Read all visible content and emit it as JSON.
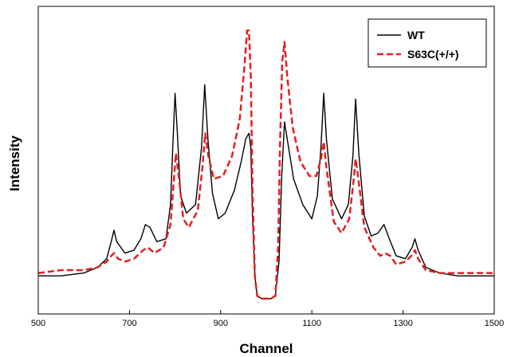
{
  "chart_data": {
    "type": "line",
    "title": "",
    "xlabel": "Channel",
    "ylabel": "Intensity",
    "xlim": [
      500,
      1500
    ],
    "ylim": [
      0,
      1
    ],
    "x_ticks": [
      500,
      700,
      900,
      1100,
      1300,
      1500
    ],
    "y_ticks_shown": false,
    "grid": false,
    "legend_position": "top-right",
    "series": [
      {
        "name": "WT",
        "color": "#000000",
        "line_style": "solid",
        "points": [
          [
            500,
            0.1
          ],
          [
            550,
            0.1
          ],
          [
            600,
            0.11
          ],
          [
            630,
            0.13
          ],
          [
            650,
            0.16
          ],
          [
            660,
            0.22
          ],
          [
            666,
            0.26
          ],
          [
            672,
            0.22
          ],
          [
            690,
            0.18
          ],
          [
            710,
            0.19
          ],
          [
            725,
            0.23
          ],
          [
            735,
            0.28
          ],
          [
            745,
            0.27
          ],
          [
            760,
            0.22
          ],
          [
            780,
            0.23
          ],
          [
            790,
            0.35
          ],
          [
            795,
            0.55
          ],
          [
            800,
            0.74
          ],
          [
            805,
            0.6
          ],
          [
            812,
            0.38
          ],
          [
            825,
            0.32
          ],
          [
            845,
            0.35
          ],
          [
            858,
            0.55
          ],
          [
            865,
            0.77
          ],
          [
            872,
            0.58
          ],
          [
            882,
            0.39
          ],
          [
            895,
            0.3
          ],
          [
            910,
            0.32
          ],
          [
            930,
            0.4
          ],
          [
            945,
            0.5
          ],
          [
            955,
            0.58
          ],
          [
            962,
            0.6
          ],
          [
            966,
            0.55
          ],
          [
            970,
            0.3
          ],
          [
            975,
            0.1
          ],
          [
            980,
            0.03
          ],
          [
            990,
            0.02
          ],
          [
            1000,
            0.02
          ],
          [
            1010,
            0.02
          ],
          [
            1020,
            0.03
          ],
          [
            1028,
            0.15
          ],
          [
            1034,
            0.45
          ],
          [
            1040,
            0.64
          ],
          [
            1046,
            0.58
          ],
          [
            1060,
            0.44
          ],
          [
            1080,
            0.35
          ],
          [
            1100,
            0.3
          ],
          [
            1112,
            0.38
          ],
          [
            1120,
            0.55
          ],
          [
            1126,
            0.74
          ],
          [
            1132,
            0.58
          ],
          [
            1145,
            0.37
          ],
          [
            1165,
            0.3
          ],
          [
            1180,
            0.35
          ],
          [
            1190,
            0.52
          ],
          [
            1196,
            0.72
          ],
          [
            1203,
            0.53
          ],
          [
            1215,
            0.31
          ],
          [
            1230,
            0.24
          ],
          [
            1245,
            0.25
          ],
          [
            1258,
            0.28
          ],
          [
            1270,
            0.23
          ],
          [
            1285,
            0.17
          ],
          [
            1305,
            0.16
          ],
          [
            1320,
            0.2
          ],
          [
            1326,
            0.23
          ],
          [
            1333,
            0.19
          ],
          [
            1350,
            0.13
          ],
          [
            1380,
            0.11
          ],
          [
            1420,
            0.1
          ],
          [
            1460,
            0.1
          ],
          [
            1500,
            0.1
          ]
        ]
      },
      {
        "name": "S63C(+/+)",
        "color": "#e41f1f",
        "line_style": "dashed",
        "points": [
          [
            500,
            0.11
          ],
          [
            550,
            0.12
          ],
          [
            600,
            0.12
          ],
          [
            630,
            0.13
          ],
          [
            650,
            0.15
          ],
          [
            660,
            0.17
          ],
          [
            666,
            0.18
          ],
          [
            675,
            0.16
          ],
          [
            690,
            0.15
          ],
          [
            710,
            0.16
          ],
          [
            730,
            0.19
          ],
          [
            740,
            0.2
          ],
          [
            755,
            0.18
          ],
          [
            775,
            0.2
          ],
          [
            790,
            0.28
          ],
          [
            797,
            0.43
          ],
          [
            802,
            0.53
          ],
          [
            808,
            0.45
          ],
          [
            818,
            0.3
          ],
          [
            830,
            0.27
          ],
          [
            850,
            0.33
          ],
          [
            860,
            0.48
          ],
          [
            866,
            0.6
          ],
          [
            873,
            0.52
          ],
          [
            885,
            0.44
          ],
          [
            905,
            0.45
          ],
          [
            925,
            0.52
          ],
          [
            942,
            0.65
          ],
          [
            952,
            0.83
          ],
          [
            958,
            0.96
          ],
          [
            962,
            0.96
          ],
          [
            966,
            0.8
          ],
          [
            970,
            0.4
          ],
          [
            975,
            0.1
          ],
          [
            980,
            0.03
          ],
          [
            990,
            0.02
          ],
          [
            1000,
            0.02
          ],
          [
            1010,
            0.02
          ],
          [
            1020,
            0.03
          ],
          [
            1026,
            0.2
          ],
          [
            1030,
            0.55
          ],
          [
            1035,
            0.85
          ],
          [
            1040,
            0.92
          ],
          [
            1046,
            0.8
          ],
          [
            1058,
            0.62
          ],
          [
            1075,
            0.5
          ],
          [
            1095,
            0.45
          ],
          [
            1110,
            0.45
          ],
          [
            1120,
            0.51
          ],
          [
            1126,
            0.57
          ],
          [
            1132,
            0.48
          ],
          [
            1148,
            0.29
          ],
          [
            1165,
            0.25
          ],
          [
            1182,
            0.3
          ],
          [
            1192,
            0.44
          ],
          [
            1196,
            0.51
          ],
          [
            1202,
            0.44
          ],
          [
            1215,
            0.27
          ],
          [
            1235,
            0.2
          ],
          [
            1250,
            0.17
          ],
          [
            1260,
            0.18
          ],
          [
            1272,
            0.17
          ],
          [
            1285,
            0.14
          ],
          [
            1305,
            0.15
          ],
          [
            1318,
            0.17
          ],
          [
            1326,
            0.19
          ],
          [
            1333,
            0.16
          ],
          [
            1350,
            0.12
          ],
          [
            1380,
            0.11
          ],
          [
            1420,
            0.11
          ],
          [
            1460,
            0.11
          ],
          [
            1500,
            0.11
          ]
        ]
      }
    ]
  }
}
